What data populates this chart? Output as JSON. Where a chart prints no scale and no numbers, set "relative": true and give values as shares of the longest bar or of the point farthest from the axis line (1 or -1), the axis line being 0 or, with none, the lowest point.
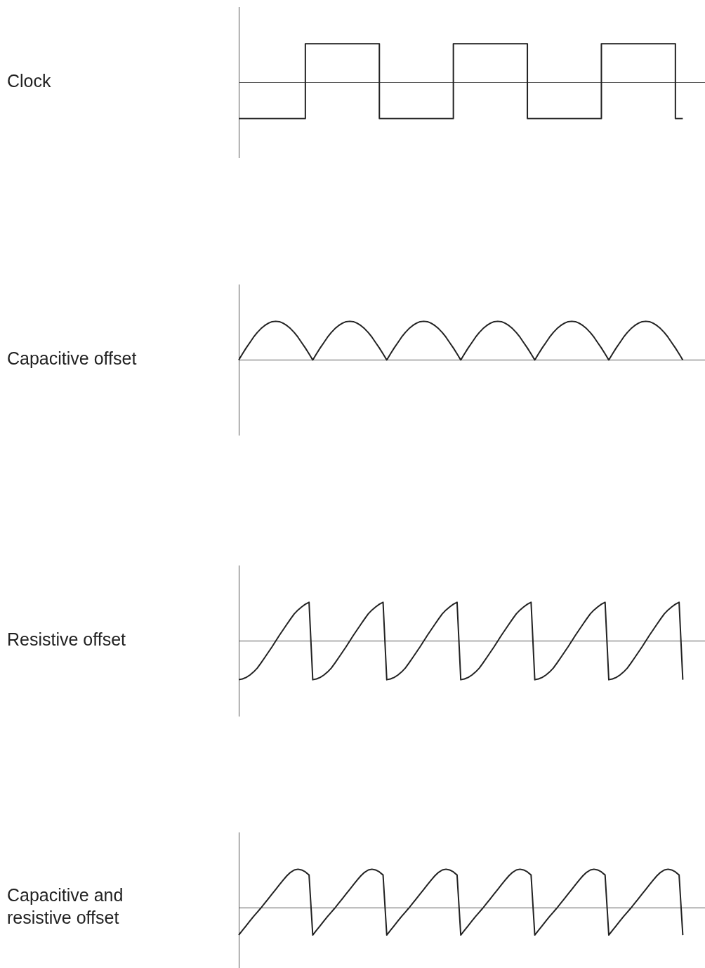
{
  "chart_data": [
    {
      "type": "step",
      "ylabel": "Clock",
      "relative": true,
      "grid": false,
      "legend": false,
      "marker": "none",
      "categories": [
        null,
        null,
        null,
        null,
        null,
        null,
        null,
        null,
        null,
        null,
        null,
        null,
        null,
        null,
        null,
        null,
        null,
        null,
        null,
        null,
        null,
        null,
        null,
        null,
        null,
        null,
        null,
        null,
        null,
        null,
        null,
        null,
        null,
        null,
        null,
        null,
        null,
        null,
        null,
        null,
        null,
        null,
        null,
        null,
        null,
        null,
        null,
        null,
        null,
        null,
        null,
        null,
        null,
        null,
        null,
        null,
        null,
        null,
        null,
        null,
        null,
        null,
        null,
        null
      ],
      "series": [
        {
          "color": "#222222",
          "values": [
            -0.93,
            -0.93,
            -0.93,
            -0.93,
            -0.93,
            -0.93,
            -0.93,
            -0.93,
            -0.93,
            -0.93,
            1,
            1,
            1,
            1,
            1,
            1,
            1,
            1,
            1,
            1,
            -0.93,
            -0.93,
            -0.93,
            -0.93,
            -0.93,
            -0.93,
            -0.93,
            -0.93,
            -0.93,
            -0.93,
            1,
            1,
            1,
            1,
            1,
            1,
            1,
            1,
            1,
            1,
            -0.93,
            -0.93,
            -0.93,
            -0.93,
            -0.93,
            -0.93,
            -0.93,
            -0.93,
            -0.93,
            -0.93,
            1,
            1,
            1,
            1,
            1,
            1,
            1,
            1,
            1,
            1,
            -0.93,
            null,
            null,
            null
          ]
        }
      ]
    },
    {
      "type": "line",
      "ylabel": "Capacitive offset",
      "relative": true,
      "grid": false,
      "legend": false,
      "marker": "none",
      "categories": [
        null,
        null,
        null,
        null,
        null,
        null,
        null,
        null,
        null,
        null,
        null,
        null,
        null,
        null,
        null,
        null,
        null,
        null,
        null,
        null,
        null,
        null,
        null,
        null,
        null,
        null,
        null,
        null,
        null,
        null,
        null,
        null,
        null,
        null,
        null,
        null,
        null,
        null,
        null,
        null,
        null,
        null,
        null,
        null,
        null,
        null,
        null,
        null,
        null,
        null,
        null,
        null,
        null,
        null,
        null,
        null,
        null,
        null,
        null,
        null,
        null,
        null,
        null,
        null,
        null,
        null,
        null,
        null,
        null,
        null,
        null,
        null,
        null,
        null,
        null,
        null,
        null,
        null,
        null,
        null,
        null,
        null,
        null,
        null,
        null,
        null,
        null,
        null,
        null,
        null,
        null,
        null,
        null,
        null,
        null,
        null,
        null,
        null,
        null,
        null,
        null,
        null,
        null,
        null,
        null,
        null,
        null,
        null,
        null,
        null,
        null,
        null,
        null,
        null,
        null,
        null,
        null,
        null,
        null,
        null,
        null,
        null,
        null,
        null,
        null,
        null,
        null
      ],
      "series": [
        {
          "color": "#222222",
          "values": [
            0,
            0.16,
            0.31,
            0.45,
            0.59,
            0.71,
            0.81,
            0.89,
            0.95,
            0.99,
            1,
            0.99,
            0.95,
            0.89,
            0.81,
            0.71,
            0.59,
            0.45,
            0.31,
            0.16,
            0,
            0.16,
            0.31,
            0.45,
            0.59,
            0.71,
            0.81,
            0.89,
            0.95,
            0.99,
            1,
            0.99,
            0.95,
            0.89,
            0.81,
            0.71,
            0.59,
            0.45,
            0.31,
            0.16,
            0,
            0.16,
            0.31,
            0.45,
            0.59,
            0.71,
            0.81,
            0.89,
            0.95,
            0.99,
            1,
            0.99,
            0.95,
            0.89,
            0.81,
            0.71,
            0.59,
            0.45,
            0.31,
            0.16,
            0,
            0.16,
            0.31,
            0.45,
            0.59,
            0.71,
            0.81,
            0.89,
            0.95,
            0.99,
            1,
            0.99,
            0.95,
            0.89,
            0.81,
            0.71,
            0.59,
            0.45,
            0.31,
            0.16,
            0,
            0.16,
            0.31,
            0.45,
            0.59,
            0.71,
            0.81,
            0.89,
            0.95,
            0.99,
            1,
            0.99,
            0.95,
            0.89,
            0.81,
            0.71,
            0.59,
            0.45,
            0.31,
            0.16,
            0,
            0.16,
            0.31,
            0.45,
            0.59,
            0.71,
            0.81,
            0.89,
            0.95,
            0.99,
            1,
            0.99,
            0.95,
            0.89,
            0.81,
            0.71,
            0.59,
            0.45,
            0.31,
            0.16,
            0,
            null,
            null,
            null,
            null,
            null,
            null
          ]
        }
      ]
    },
    {
      "type": "line",
      "ylabel": "Resistive offset",
      "relative": true,
      "grid": false,
      "legend": false,
      "marker": "none",
      "categories": [
        null,
        null,
        null,
        null,
        null,
        null,
        null,
        null,
        null,
        null,
        null,
        null,
        null,
        null,
        null,
        null,
        null,
        null,
        null,
        null,
        null,
        null,
        null,
        null,
        null,
        null,
        null,
        null,
        null,
        null,
        null,
        null,
        null,
        null,
        null,
        null,
        null,
        null,
        null,
        null,
        null,
        null,
        null,
        null,
        null,
        null,
        null,
        null,
        null,
        null,
        null,
        null,
        null,
        null,
        null,
        null,
        null,
        null,
        null,
        null,
        null,
        null,
        null,
        null,
        null,
        null,
        null,
        null,
        null,
        null,
        null,
        null,
        null,
        null,
        null,
        null,
        null,
        null,
        null,
        null,
        null,
        null,
        null,
        null,
        null,
        null,
        null,
        null,
        null,
        null,
        null,
        null,
        null,
        null,
        null,
        null,
        null,
        null,
        null,
        null,
        null,
        null,
        null,
        null,
        null,
        null,
        null,
        null,
        null,
        null,
        null,
        null,
        null,
        null,
        null,
        null,
        null,
        null,
        null,
        null,
        null,
        null,
        null,
        null,
        null,
        null,
        null
      ],
      "series": [
        {
          "color": "#222222",
          "values": [
            -1,
            -0.98,
            -0.94,
            -0.88,
            -0.8,
            -0.7,
            -0.57,
            -0.43,
            -0.29,
            -0.15,
            0,
            0.15,
            0.29,
            0.43,
            0.57,
            0.7,
            0.8,
            0.88,
            0.95,
            1,
            -1,
            -0.98,
            -0.94,
            -0.88,
            -0.8,
            -0.7,
            -0.57,
            -0.43,
            -0.29,
            -0.15,
            0,
            0.15,
            0.29,
            0.43,
            0.57,
            0.7,
            0.8,
            0.88,
            0.95,
            1,
            -1,
            -0.98,
            -0.94,
            -0.88,
            -0.8,
            -0.7,
            -0.57,
            -0.43,
            -0.29,
            -0.15,
            0,
            0.15,
            0.29,
            0.43,
            0.57,
            0.7,
            0.8,
            0.88,
            0.95,
            1,
            -1,
            -0.98,
            -0.94,
            -0.88,
            -0.8,
            -0.7,
            -0.57,
            -0.43,
            -0.29,
            -0.15,
            0,
            0.15,
            0.29,
            0.43,
            0.57,
            0.7,
            0.8,
            0.88,
            0.95,
            1,
            -1,
            -0.98,
            -0.94,
            -0.88,
            -0.8,
            -0.7,
            -0.57,
            -0.43,
            -0.29,
            -0.15,
            0,
            0.15,
            0.29,
            0.43,
            0.57,
            0.7,
            0.8,
            0.88,
            0.95,
            1,
            -1,
            -0.98,
            -0.94,
            -0.88,
            -0.8,
            -0.7,
            -0.57,
            -0.43,
            -0.29,
            -0.15,
            0,
            0.15,
            0.29,
            0.43,
            0.57,
            0.7,
            0.8,
            0.88,
            0.95,
            1,
            -1,
            null,
            null,
            null,
            null,
            null,
            null
          ]
        }
      ]
    },
    {
      "type": "line",
      "ylabel": "Capacitive and resistive offset",
      "relative": true,
      "grid": false,
      "legend": false,
      "marker": "none",
      "categories": [
        null,
        null,
        null,
        null,
        null,
        null,
        null,
        null,
        null,
        null,
        null,
        null,
        null,
        null,
        null,
        null,
        null,
        null,
        null,
        null,
        null,
        null,
        null,
        null,
        null,
        null,
        null,
        null,
        null,
        null,
        null,
        null,
        null,
        null,
        null,
        null,
        null,
        null,
        null,
        null,
        null,
        null,
        null,
        null,
        null,
        null,
        null,
        null,
        null,
        null,
        null,
        null,
        null,
        null,
        null,
        null,
        null,
        null,
        null,
        null,
        null,
        null,
        null,
        null,
        null,
        null,
        null,
        null,
        null,
        null,
        null,
        null,
        null,
        null,
        null,
        null,
        null,
        null,
        null,
        null,
        null,
        null,
        null,
        null,
        null,
        null,
        null,
        null,
        null,
        null,
        null,
        null,
        null,
        null,
        null,
        null,
        null,
        null,
        null,
        null,
        null,
        null,
        null,
        null,
        null,
        null,
        null,
        null,
        null,
        null,
        null,
        null,
        null,
        null,
        null,
        null,
        null,
        null,
        null,
        null,
        null,
        null,
        null,
        null,
        null,
        null,
        null
      ],
      "series": [
        {
          "color": "#222222",
          "values": [
            -0.7,
            -0.58,
            -0.46,
            -0.34,
            -0.22,
            -0.11,
            0,
            0.12,
            0.24,
            0.36,
            0.48,
            0.6,
            0.72,
            0.83,
            0.92,
            0.98,
            1,
            0.98,
            0.93,
            0.85,
            -0.7,
            -0.58,
            -0.46,
            -0.34,
            -0.22,
            -0.11,
            0,
            0.12,
            0.24,
            0.36,
            0.48,
            0.6,
            0.72,
            0.83,
            0.92,
            0.98,
            1,
            0.98,
            0.93,
            0.85,
            -0.7,
            -0.58,
            -0.46,
            -0.34,
            -0.22,
            -0.11,
            0,
            0.12,
            0.24,
            0.36,
            0.48,
            0.6,
            0.72,
            0.83,
            0.92,
            0.98,
            1,
            0.98,
            0.93,
            0.85,
            -0.7,
            -0.58,
            -0.46,
            -0.34,
            -0.22,
            -0.11,
            0,
            0.12,
            0.24,
            0.36,
            0.48,
            0.6,
            0.72,
            0.83,
            0.92,
            0.98,
            1,
            0.98,
            0.93,
            0.85,
            -0.7,
            -0.58,
            -0.46,
            -0.34,
            -0.22,
            -0.11,
            0,
            0.12,
            0.24,
            0.36,
            0.48,
            0.6,
            0.72,
            0.83,
            0.92,
            0.98,
            1,
            0.98,
            0.93,
            0.85,
            -0.7,
            -0.58,
            -0.46,
            -0.34,
            -0.22,
            -0.11,
            0,
            0.12,
            0.24,
            0.36,
            0.48,
            0.6,
            0.72,
            0.83,
            0.92,
            0.98,
            1,
            0.98,
            0.93,
            0.85,
            -0.7,
            null,
            null,
            null,
            null,
            null,
            null
          ]
        }
      ]
    }
  ]
}
